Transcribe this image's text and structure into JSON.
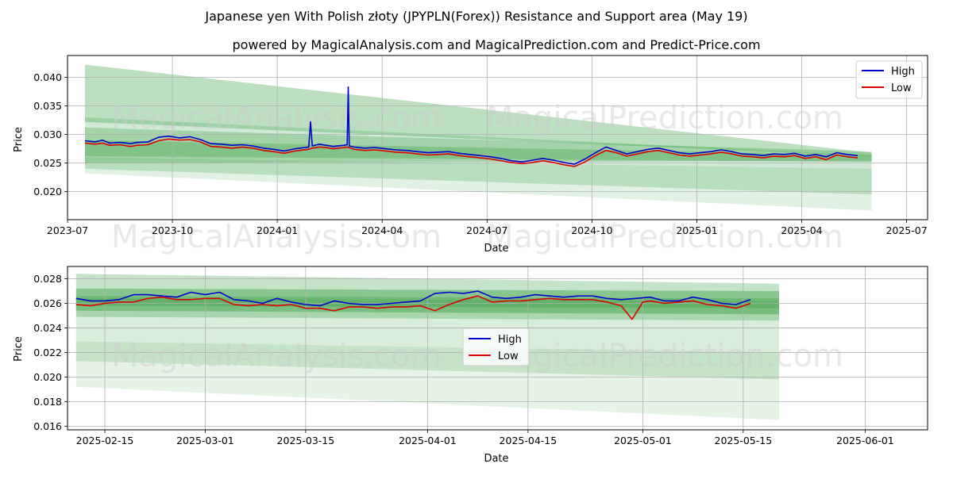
{
  "title": "Japanese yen With Polish złoty (JPYPLN(Forex)) Resistance and Support area (May 19)",
  "subtitle": "powered by MagicalAnalysis.com and MagicalPrediction.com and Predict-Price.com",
  "watermarks": [
    "MagicalAnalysis.com",
    "MagicalPrediction.com"
  ],
  "colors": {
    "high": "#0000cc",
    "low": "#dd0000",
    "band": "#2e9a3a",
    "grid": "#b0b0b0"
  },
  "chart_data": [
    {
      "type": "line",
      "xlabel": "Date",
      "ylabel": "Price",
      "x_ticks": [
        "2023-07",
        "2023-10",
        "2024-01",
        "2024-04",
        "2024-07",
        "2024-10",
        "2025-01",
        "2025-04",
        "2025-07"
      ],
      "x_range": [
        0,
        24.6
      ],
      "ylim": [
        0.0151,
        0.0438
      ],
      "y_ticks": [
        0.02,
        0.025,
        0.03,
        0.035,
        0.04
      ],
      "y_tick_labels": [
        "0.020",
        "0.025",
        "0.030",
        "0.035",
        "0.040"
      ],
      "legend": {
        "position": "top-right",
        "entries": [
          "High",
          "Low"
        ]
      },
      "bands": [
        {
          "x": [
            0.5,
            23.0
          ],
          "upper": [
            0.0422,
            0.0268
          ],
          "lower": [
            0.0322,
            0.0262
          ],
          "opacity": 0.32
        },
        {
          "x": [
            0.5,
            23.0
          ],
          "upper": [
            0.033,
            0.0263
          ],
          "lower": [
            0.024,
            0.0195
          ],
          "opacity": 0.22
        },
        {
          "x": [
            0.5,
            23.0
          ],
          "upper": [
            0.026,
            0.024
          ],
          "lower": [
            0.0232,
            0.0167
          ],
          "opacity": 0.14
        },
        {
          "x": [
            0.5,
            23.0
          ],
          "upper": [
            0.0312,
            0.027
          ],
          "lower": [
            0.025,
            0.0254
          ],
          "opacity": 0.28
        },
        {
          "x": [
            0.5,
            23.0
          ],
          "upper": [
            0.029,
            0.0264
          ],
          "lower": [
            0.0262,
            0.0252
          ],
          "opacity": 0.3
        }
      ],
      "series": [
        {
          "name": "High",
          "x": [
            0.5,
            0.8,
            1.0,
            1.2,
            1.5,
            1.8,
            2.0,
            2.3,
            2.6,
            2.9,
            3.2,
            3.5,
            3.8,
            4.1,
            4.4,
            4.7,
            5.0,
            5.3,
            5.6,
            5.9,
            6.2,
            6.5,
            6.9,
            6.95,
            7.0,
            7.2,
            7.4,
            7.6,
            7.9,
            8.0,
            8.03,
            8.06,
            8.2,
            8.5,
            8.8,
            9.1,
            9.4,
            9.7,
            10.0,
            10.3,
            10.6,
            10.9,
            11.2,
            11.5,
            11.8,
            12.1,
            12.4,
            12.7,
            13.0,
            13.3,
            13.6,
            13.9,
            14.2,
            14.5,
            14.8,
            15.1,
            15.4,
            15.7,
            16.0,
            16.3,
            16.6,
            16.9,
            17.2,
            17.5,
            17.8,
            18.1,
            18.4,
            18.7,
            19.0,
            19.3,
            19.6,
            19.9,
            20.2,
            20.5,
            20.8,
            21.1,
            21.4,
            21.7,
            22.0,
            22.3,
            22.6
          ],
          "values": [
            0.0289,
            0.0287,
            0.029,
            0.0285,
            0.0286,
            0.0284,
            0.0286,
            0.0287,
            0.0295,
            0.0297,
            0.0294,
            0.0296,
            0.0291,
            0.0284,
            0.0283,
            0.0281,
            0.0282,
            0.028,
            0.0276,
            0.0274,
            0.0271,
            0.0275,
            0.0278,
            0.0322,
            0.028,
            0.0283,
            0.0281,
            0.0279,
            0.0281,
            0.0282,
            0.0383,
            0.028,
            0.0278,
            0.0276,
            0.0277,
            0.0275,
            0.0273,
            0.0272,
            0.027,
            0.0268,
            0.0269,
            0.027,
            0.0267,
            0.0265,
            0.0263,
            0.0261,
            0.0258,
            0.0254,
            0.0252,
            0.0255,
            0.0258,
            0.0255,
            0.0251,
            0.0248,
            0.0257,
            0.0268,
            0.0278,
            0.0272,
            0.0266,
            0.027,
            0.0274,
            0.0276,
            0.0272,
            0.0268,
            0.0266,
            0.0268,
            0.027,
            0.0273,
            0.027,
            0.0266,
            0.0265,
            0.0263,
            0.0266,
            0.0265,
            0.0267,
            0.0262,
            0.0265,
            0.0261,
            0.0268,
            0.0265,
            0.0263
          ]
        },
        {
          "name": "Low",
          "x": [
            0.5,
            0.8,
            1.0,
            1.2,
            1.5,
            1.8,
            2.0,
            2.3,
            2.6,
            2.9,
            3.2,
            3.5,
            3.8,
            4.1,
            4.4,
            4.7,
            5.0,
            5.3,
            5.6,
            5.9,
            6.2,
            6.5,
            6.9,
            7.0,
            7.2,
            7.4,
            7.6,
            7.9,
            8.0,
            8.2,
            8.5,
            8.8,
            9.1,
            9.4,
            9.7,
            10.0,
            10.3,
            10.6,
            10.9,
            11.2,
            11.5,
            11.8,
            12.1,
            12.4,
            12.7,
            13.0,
            13.3,
            13.6,
            13.9,
            14.2,
            14.5,
            14.8,
            15.1,
            15.4,
            15.7,
            16.0,
            16.3,
            16.6,
            16.9,
            17.2,
            17.5,
            17.8,
            18.1,
            18.4,
            18.7,
            19.0,
            19.3,
            19.6,
            19.9,
            20.2,
            20.5,
            20.8,
            21.1,
            21.4,
            21.7,
            22.0,
            22.3,
            22.6
          ],
          "values": [
            0.0285,
            0.0283,
            0.0285,
            0.0281,
            0.0282,
            0.0279,
            0.0281,
            0.0282,
            0.0289,
            0.0292,
            0.029,
            0.0291,
            0.0287,
            0.0279,
            0.0278,
            0.0276,
            0.0278,
            0.0276,
            0.0272,
            0.027,
            0.0267,
            0.0271,
            0.0274,
            0.0276,
            0.0278,
            0.0277,
            0.0275,
            0.0277,
            0.0278,
            0.0274,
            0.0272,
            0.0273,
            0.0271,
            0.0269,
            0.0268,
            0.0266,
            0.0264,
            0.0265,
            0.0266,
            0.0263,
            0.0261,
            0.0259,
            0.0257,
            0.0254,
            0.0251,
            0.0249,
            0.0251,
            0.0254,
            0.0251,
            0.0247,
            0.0244,
            0.0252,
            0.0263,
            0.0272,
            0.0268,
            0.0262,
            0.0266,
            0.027,
            0.0272,
            0.0268,
            0.0264,
            0.0262,
            0.0264,
            0.0266,
            0.0269,
            0.0266,
            0.0262,
            0.0261,
            0.0259,
            0.0262,
            0.0261,
            0.0263,
            0.0258,
            0.0261,
            0.0256,
            0.0264,
            0.0261,
            0.0259
          ]
        }
      ]
    },
    {
      "type": "line",
      "xlabel": "Date",
      "ylabel": "Price",
      "x_ticks": [
        "2025-02-15",
        "2025-03-01",
        "2025-03-15",
        "2025-04-01",
        "2025-04-15",
        "2025-05-01",
        "2025-05-15",
        "2025-06-01"
      ],
      "x_tick_days": [
        4,
        18,
        32,
        49,
        63,
        79,
        93,
        110
      ],
      "x_range": [
        -1.2,
        118.7
      ],
      "ylim": [
        0.0157,
        0.029
      ],
      "y_ticks": [
        0.016,
        0.018,
        0.02,
        0.022,
        0.024,
        0.026,
        0.028
      ],
      "y_tick_labels": [
        "0.016",
        "0.018",
        "0.020",
        "0.022",
        "0.024",
        "0.026",
        "0.028"
      ],
      "legend": {
        "position": "center",
        "entries": [
          "High",
          "Low"
        ]
      },
      "bands": [
        {
          "x": [
            0,
            98
          ],
          "upper": [
            0.0284,
            0.0276
          ],
          "lower": [
            0.0249,
            0.0246
          ],
          "opacity": 0.28
        },
        {
          "x": [
            0,
            98
          ],
          "upper": [
            0.0264,
            0.0262
          ],
          "lower": [
            0.0213,
            0.0198
          ],
          "opacity": 0.18
        },
        {
          "x": [
            0,
            98
          ],
          "upper": [
            0.0229,
            0.022
          ],
          "lower": [
            0.0192,
            0.0165
          ],
          "opacity": 0.12
        },
        {
          "x": [
            0,
            98
          ],
          "upper": [
            0.0272,
            0.027
          ],
          "lower": [
            0.0254,
            0.0251
          ],
          "opacity": 0.4
        },
        {
          "x": [
            0,
            98
          ],
          "upper": [
            0.0266,
            0.0264
          ],
          "lower": [
            0.0258,
            0.0256
          ],
          "opacity": 0.3
        }
      ],
      "series": [
        {
          "name": "High",
          "x": [
            0,
            2,
            4,
            6,
            8,
            10,
            12,
            14,
            16,
            18,
            20,
            22,
            24,
            26,
            28,
            30,
            32,
            34,
            36,
            38,
            40,
            42,
            44,
            46,
            48,
            50,
            52,
            54,
            56,
            58,
            60,
            62,
            64,
            66,
            68,
            70,
            72,
            74,
            76,
            78,
            80,
            82,
            84,
            86,
            88,
            90,
            92,
            94
          ],
          "values": [
            0.0264,
            0.0262,
            0.0262,
            0.0263,
            0.0267,
            0.0267,
            0.0266,
            0.0265,
            0.0269,
            0.0267,
            0.0269,
            0.0263,
            0.0262,
            0.026,
            0.0264,
            0.0261,
            0.0259,
            0.0258,
            0.0262,
            0.026,
            0.0259,
            0.0259,
            0.026,
            0.0261,
            0.0262,
            0.0268,
            0.0269,
            0.0268,
            0.027,
            0.0265,
            0.0264,
            0.0265,
            0.0267,
            0.0266,
            0.0265,
            0.0266,
            0.0266,
            0.0264,
            0.0263,
            0.0264,
            0.0265,
            0.0262,
            0.0262,
            0.0265,
            0.0263,
            0.026,
            0.0259,
            0.0263
          ]
        },
        {
          "name": "Low",
          "x": [
            0,
            2,
            4,
            6,
            8,
            10,
            12,
            14,
            16,
            18,
            20,
            22,
            24,
            26,
            28,
            30,
            32,
            34,
            36,
            38,
            40,
            42,
            44,
            46,
            48,
            50,
            52,
            54,
            56,
            58,
            60,
            62,
            64,
            66,
            68,
            70,
            72,
            74,
            76,
            77.5,
            79,
            80,
            82,
            84,
            86,
            88,
            90,
            92,
            94
          ],
          "values": [
            0.0259,
            0.0258,
            0.026,
            0.0261,
            0.0261,
            0.0264,
            0.0265,
            0.0263,
            0.0263,
            0.0264,
            0.0264,
            0.0259,
            0.0258,
            0.0259,
            0.0258,
            0.0259,
            0.0256,
            0.0256,
            0.0254,
            0.0257,
            0.0257,
            0.0256,
            0.0257,
            0.0257,
            0.0258,
            0.0254,
            0.0259,
            0.0263,
            0.0266,
            0.0261,
            0.0262,
            0.0262,
            0.0263,
            0.0264,
            0.0263,
            0.0263,
            0.0263,
            0.0261,
            0.0258,
            0.0247,
            0.0261,
            0.0262,
            0.026,
            0.0261,
            0.0262,
            0.0259,
            0.0258,
            0.0256,
            0.026
          ]
        }
      ]
    }
  ]
}
